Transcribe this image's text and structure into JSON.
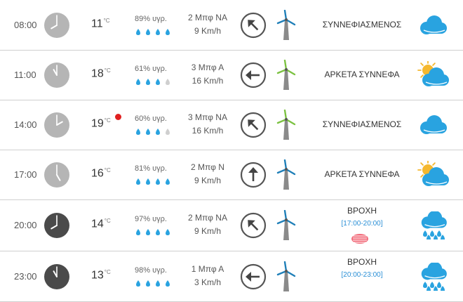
{
  "colors": {
    "accent_blue": "#29a3e0",
    "clock_day": "#b5b5b5",
    "clock_night": "#4a4a4a",
    "text_blue": "#2a8fd6",
    "red": "#e02020"
  },
  "forecast": [
    {
      "time": "08:00",
      "clock": "day",
      "temp": "11",
      "unit": "°C",
      "hot": false,
      "humidity": "89% υγρ.",
      "drops": 4,
      "beaufort": "2 Μπφ ΝΑ",
      "speed": "9 Km/h",
      "arrow_deg": -45,
      "turbine": "blue",
      "condition": "ΣΥΝΝΕΦΙΑΣΜΕΝΟΣ",
      "range": "",
      "icon": "cloudy-icon"
    },
    {
      "time": "11:00",
      "clock": "day",
      "temp": "18",
      "unit": "°C",
      "hot": false,
      "humidity": "61% υγρ.",
      "drops": 3,
      "beaufort": "3 Μπφ Α",
      "speed": "16 Km/h",
      "arrow_deg": -90,
      "turbine": "green",
      "condition": "ΑΡΚΕΤΑ ΣΥΝΝΕΦΑ",
      "range": "",
      "icon": "partly-cloudy-icon"
    },
    {
      "time": "14:00",
      "clock": "day",
      "temp": "19",
      "unit": "°C",
      "hot": true,
      "humidity": "60% υγρ.",
      "drops": 3,
      "beaufort": "3 Μπφ ΝΑ",
      "speed": "16 Km/h",
      "arrow_deg": -45,
      "turbine": "green",
      "condition": "ΣΥΝΝΕΦΙΑΣΜΕΝΟΣ",
      "range": "",
      "icon": "cloudy-icon"
    },
    {
      "time": "17:00",
      "clock": "day",
      "temp": "16",
      "unit": "°C",
      "hot": false,
      "humidity": "81% υγρ.",
      "drops": 4,
      "beaufort": "2 Μπφ Ν",
      "speed": "9 Km/h",
      "arrow_deg": 0,
      "turbine": "blue",
      "condition": "ΑΡΚΕΤΑ ΣΥΝΝΕΦΑ",
      "range": "",
      "icon": "partly-cloudy-icon"
    },
    {
      "time": "20:00",
      "clock": "night",
      "temp": "14",
      "unit": "°C",
      "hot": false,
      "humidity": "97% υγρ.",
      "drops": 4,
      "beaufort": "2 Μπφ ΝΑ",
      "speed": "9 Km/h",
      "arrow_deg": -45,
      "turbine": "blue",
      "condition": "ΒΡΟΧΗ",
      "range": "[17:00-20:00]",
      "icon": "rain-icon"
    },
    {
      "time": "23:00",
      "clock": "night",
      "temp": "13",
      "unit": "°C",
      "hot": false,
      "humidity": "98% υγρ.",
      "drops": 4,
      "beaufort": "1 Μπφ Α",
      "speed": "3 Km/h",
      "arrow_deg": -90,
      "turbine": "blue",
      "condition": "ΒΡΟΧΗ",
      "range": "[20:00-23:00]",
      "icon": "rain-icon"
    }
  ]
}
